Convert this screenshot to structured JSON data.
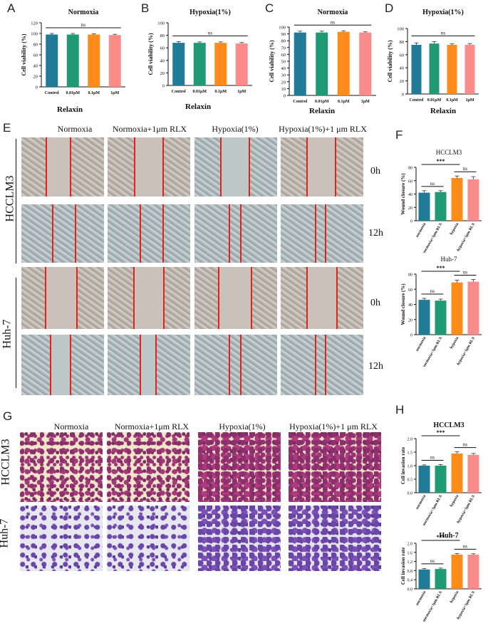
{
  "panels": {
    "A": "A",
    "B": "B",
    "C": "C",
    "D": "D",
    "E": "E",
    "F": "F",
    "G": "G",
    "H": "H"
  },
  "viability_xgroup": "Relaxin",
  "wound": {
    "columns": [
      "Normoxia",
      "Normoxia+1μm RLX",
      "Hypoxia(1%)",
      "Hypoxia(1%)+1 μm RLX"
    ],
    "cell_lines": [
      "HCCLM3",
      "Huh-7"
    ],
    "times": [
      "0h",
      "12h",
      "0h",
      "12h"
    ]
  },
  "invasion": {
    "columns": [
      "Normoxia",
      "Normoxia+1μm RLX",
      "Hypoxia(1%)",
      "Hypoxia(1%)+1 μm RLX"
    ],
    "cell_lines": [
      "HCCLM3",
      "Huh-7"
    ]
  },
  "colors": {
    "teal": "#1f7b96",
    "green": "#1f9a72",
    "orange": "#ff8c1a",
    "pink": "#f98b8b",
    "red_line": "#e1231c"
  },
  "chart_data": [
    {
      "id": "A",
      "type": "bar",
      "title": "Normoxia",
      "title_style": "bold",
      "categories": [
        "Control",
        "0.01μM",
        "0.1μM",
        "1μM"
      ],
      "values": [
        98,
        98,
        98,
        97
      ],
      "errors": [
        2,
        2,
        1.5,
        1.5
      ],
      "ylabel": "Cell viability (%)",
      "ylim": [
        0,
        120
      ],
      "yticks": [
        0,
        20,
        40,
        60,
        80,
        100,
        120
      ],
      "annotations": [
        {
          "text": "ns",
          "from": 0,
          "to": 3
        }
      ]
    },
    {
      "id": "B",
      "type": "bar",
      "title": "Hypoxia(1%)",
      "title_style": "bold",
      "categories": [
        "Control",
        "0.01μM",
        "0.1μM",
        "1μM"
      ],
      "values": [
        68,
        68,
        68,
        67
      ],
      "errors": [
        2,
        1.5,
        1.5,
        1.5
      ],
      "ylabel": "Cell viability (%)",
      "ylim": [
        0,
        100
      ],
      "yticks": [
        0,
        20,
        40,
        60,
        80,
        100
      ],
      "annotations": [
        {
          "text": "ns",
          "from": 0,
          "to": 3
        }
      ]
    },
    {
      "id": "C",
      "type": "bar",
      "title": "Normoxia",
      "title_style": "bold",
      "categories": [
        "Control",
        "0.01μM",
        "0.1μM",
        "1μM"
      ],
      "values": [
        92,
        92,
        93,
        92
      ],
      "errors": [
        2,
        2,
        1.5,
        1
      ],
      "ylabel": "Cell viability (%)",
      "ylim": [
        0,
        100
      ],
      "yticks": [
        0,
        10,
        20,
        30,
        40,
        50,
        60,
        70,
        80,
        90,
        100
      ],
      "annotations": [
        {
          "text": "ns",
          "from": 0,
          "to": 3
        }
      ]
    },
    {
      "id": "D",
      "type": "bar",
      "title": "Hypoxia(1%)",
      "title_style": "bold",
      "categories": [
        "Control",
        "0.01μM",
        "0.1μM",
        "1μM"
      ],
      "values": [
        75,
        77,
        75,
        75
      ],
      "errors": [
        3,
        3,
        1.5,
        2
      ],
      "ylabel": "Cell viability (%)",
      "ylim": [
        0,
        100
      ],
      "yticks": [
        0,
        20,
        40,
        60,
        80,
        100
      ],
      "annotations": [
        {
          "text": "ns",
          "from": 0,
          "to": 3
        }
      ]
    },
    {
      "id": "F1",
      "type": "bar",
      "title": "HCCLM3",
      "title_style": "plain",
      "categories": [
        "normoxia",
        "normoxia+1μm RLX",
        "hypoxia",
        "hypoxia+1μm RLX"
      ],
      "values": [
        42,
        43,
        64,
        62
      ],
      "errors": [
        3,
        2,
        3,
        4
      ],
      "ylabel": "Wound closure (%)",
      "ylim": [
        0,
        80
      ],
      "yticks": [
        0,
        20,
        40,
        60,
        80
      ],
      "annotations": [
        {
          "text": "ns",
          "from": 0,
          "to": 1
        },
        {
          "text": "***",
          "from": 0,
          "to": 2
        },
        {
          "text": "ns",
          "from": 2,
          "to": 3
        }
      ]
    },
    {
      "id": "F2",
      "type": "bar",
      "title": "Huh-7",
      "title_style": "plain",
      "categories": [
        "normoxia",
        "normoxia+1μm RLX",
        "hypoxia",
        "hypoxia+1μm RLX"
      ],
      "values": [
        46,
        45,
        69,
        70
      ],
      "errors": [
        2,
        2,
        3,
        3
      ],
      "ylabel": "Wound closure (%)",
      "ylim": [
        0,
        80
      ],
      "yticks": [
        0,
        20,
        40,
        60,
        80
      ],
      "annotations": [
        {
          "text": "ns",
          "from": 0,
          "to": 1
        },
        {
          "text": "***",
          "from": 0,
          "to": 2
        },
        {
          "text": "ns",
          "from": 2,
          "to": 3
        }
      ]
    },
    {
      "id": "H1",
      "type": "bar",
      "title": "HCCLM3",
      "title_style": "bold",
      "categories": [
        "normoxia",
        "normoxia+1μm RLX",
        "hypoxia",
        "hypoxia+1μm RLX"
      ],
      "values": [
        1.0,
        1.0,
        1.45,
        1.4
      ],
      "errors": [
        0.03,
        0.04,
        0.06,
        0.05
      ],
      "ylabel": "Cell invasion rate",
      "ylim": [
        0,
        2.0
      ],
      "yticks": [
        0.0,
        0.5,
        1.0,
        1.5,
        2.0
      ],
      "annotations": [
        {
          "text": "ns",
          "from": 0,
          "to": 1
        },
        {
          "text": "***",
          "from": 0,
          "to": 2
        },
        {
          "text": "ns",
          "from": 2,
          "to": 3
        }
      ]
    },
    {
      "id": "H2",
      "type": "bar",
      "title": "Huh-7",
      "title_style": "bold",
      "categories": [
        "normoxia",
        "normoxia+1μm RLX",
        "hypoxia",
        "hypoxia+1μm RLX"
      ],
      "values": [
        0.85,
        0.87,
        1.5,
        1.5
      ],
      "errors": [
        0.04,
        0.04,
        0.05,
        0.04
      ],
      "ylabel": "Cell invasion rate",
      "ylim": [
        0,
        2.0
      ],
      "yticks": [
        0.0,
        0.4,
        0.8,
        1.2,
        1.6,
        2.0
      ],
      "annotations": [
        {
          "text": "ns",
          "from": 0,
          "to": 1
        },
        {
          "text": "***",
          "from": 0,
          "to": 2
        },
        {
          "text": "ns",
          "from": 2,
          "to": 3
        }
      ]
    }
  ]
}
